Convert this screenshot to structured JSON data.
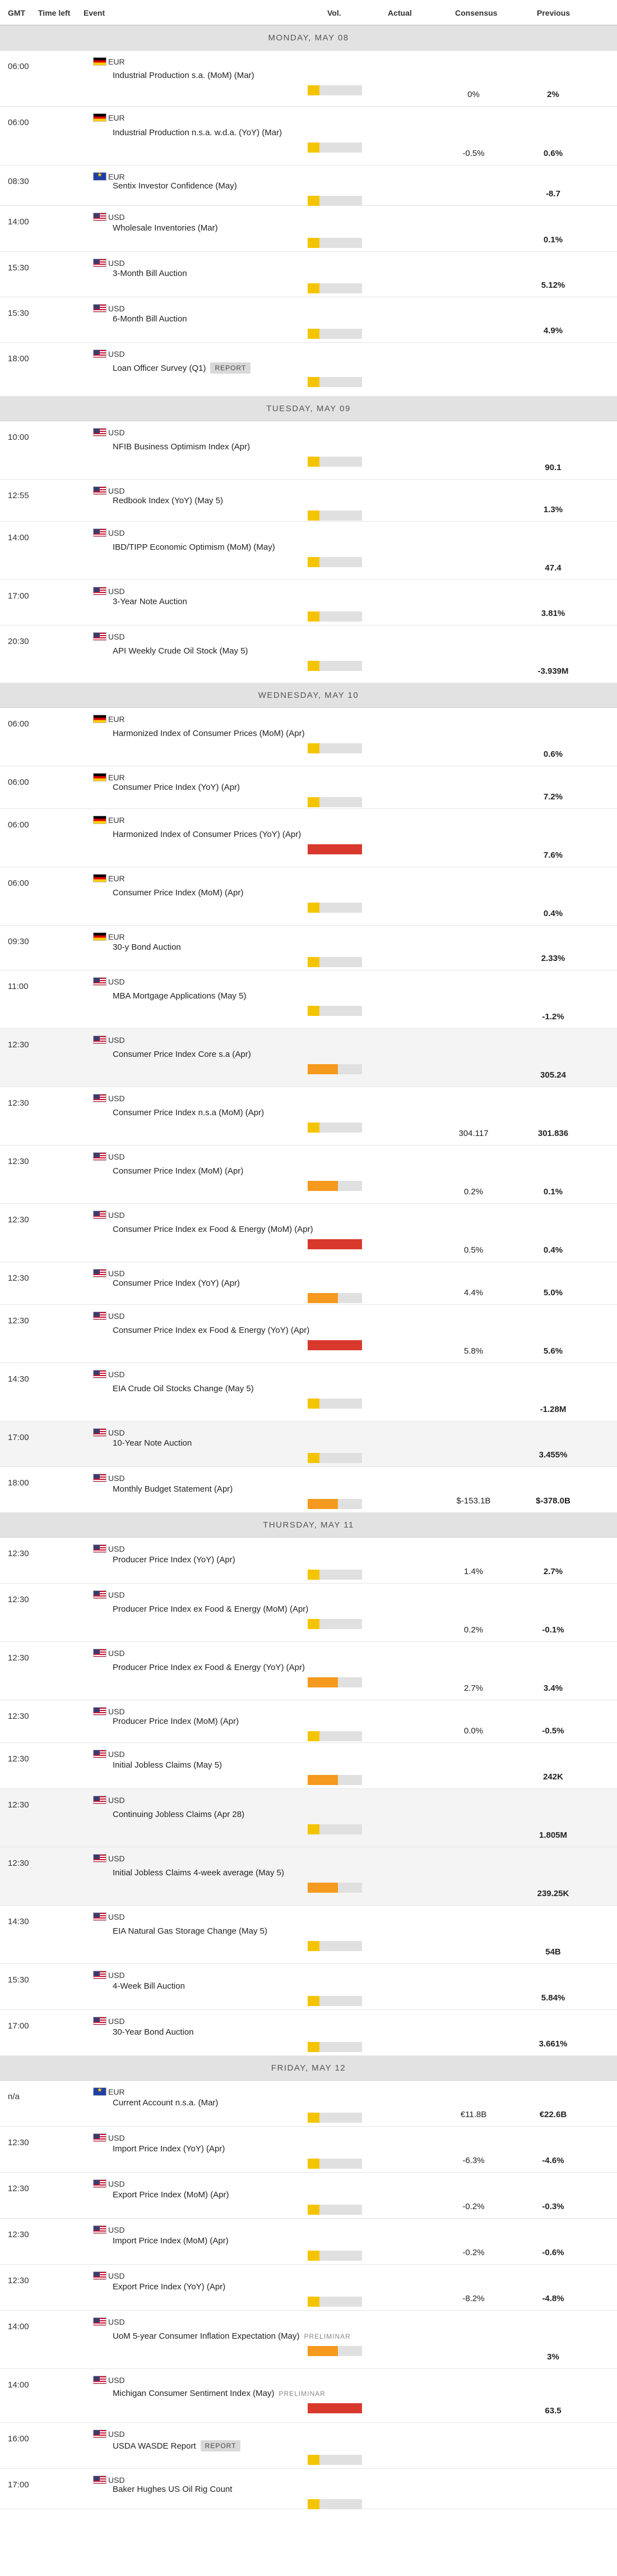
{
  "columns": {
    "gmt": "GMT",
    "time_left": "Time left",
    "event": "Event",
    "vol": "Vol.",
    "actual": "Actual",
    "consensus": "Consensus",
    "previous": "Previous"
  },
  "colors": {
    "low": "#f5c400",
    "medium": "#f59a1f",
    "high": "#d8392c",
    "track": "#e0e0e0"
  },
  "days": [
    {
      "label": "MONDAY, MAY 08",
      "events": [
        {
          "time": "06:00",
          "flag": "DE",
          "currency": "EUR",
          "name": "Industrial Production s.a. (MoM) (Mar)",
          "vol": "low",
          "consensus": "0%",
          "previous": "2%",
          "h": 100
        },
        {
          "time": "06:00",
          "flag": "DE",
          "currency": "EUR",
          "name": "Industrial Production n.s.a. w.d.a. (YoY) (Mar)",
          "vol": "low",
          "consensus": "-0.5%",
          "previous": "0.6%",
          "h": 105
        },
        {
          "time": "08:30",
          "flag": "EUR",
          "currency": "EUR",
          "name": "Sentix Investor Confidence (May)",
          "vol": "low",
          "consensus": "",
          "previous": "-8.7",
          "h": 72
        },
        {
          "time": "14:00",
          "flag": "US",
          "currency": "USD",
          "name": "Wholesale Inventories (Mar)",
          "vol": "low",
          "consensus": "",
          "previous": "0.1%",
          "h": 82
        },
        {
          "time": "15:30",
          "flag": "US",
          "currency": "USD",
          "name": "3-Month Bill Auction",
          "vol": "low",
          "consensus": "",
          "previous": "5.12%",
          "h": 81
        },
        {
          "time": "15:30",
          "flag": "US",
          "currency": "USD",
          "name": "6-Month Bill Auction",
          "vol": "low",
          "consensus": "",
          "previous": "4.9%",
          "h": 81
        },
        {
          "time": "18:00",
          "flag": "US",
          "currency": "USD",
          "name": "Loan Officer Survey (Q1)",
          "tag": "REPORT",
          "vol": "low",
          "consensus": "",
          "previous": "",
          "h": 96
        }
      ]
    },
    {
      "label": "TUESDAY, MAY 09",
      "events": [
        {
          "time": "10:00",
          "flag": "US",
          "currency": "USD",
          "name": "NFIB Business Optimism Index (Apr)",
          "vol": "low",
          "consensus": "",
          "previous": "90.1",
          "h": 104
        },
        {
          "time": "12:55",
          "flag": "US",
          "currency": "USD",
          "name": "Redbook Index (YoY) (May 5)",
          "vol": "low",
          "consensus": "",
          "previous": "1.3%",
          "h": 75
        },
        {
          "time": "14:00",
          "flag": "US",
          "currency": "USD",
          "name": "IBD/TIPP Economic Optimism (MoM) (May)",
          "vol": "low",
          "consensus": "",
          "previous": "47.4",
          "h": 104
        },
        {
          "time": "17:00",
          "flag": "US",
          "currency": "USD",
          "name": "3-Year Note Auction",
          "vol": "low",
          "consensus": "",
          "previous": "3.81%",
          "h": 81
        },
        {
          "time": "20:30",
          "flag": "US",
          "currency": "USD",
          "name": "API Weekly Crude Oil Stock (May 5)",
          "vol": "low",
          "consensus": "",
          "previous": "-3.939M",
          "h": 103
        }
      ]
    },
    {
      "label": "WEDNESDAY, MAY 10",
      "events": [
        {
          "time": "06:00",
          "flag": "DE",
          "currency": "EUR",
          "name": "Harmonized Index of Consumer Prices (MoM) (Apr)",
          "vol": "low",
          "consensus": "",
          "previous": "0.6%",
          "h": 104
        },
        {
          "time": "06:00",
          "flag": "DE",
          "currency": "EUR",
          "name": "Consumer Price Index (YoY) (Apr)",
          "vol": "low",
          "consensus": "",
          "previous": "7.2%",
          "h": 76
        },
        {
          "time": "06:00",
          "flag": "DE",
          "currency": "EUR",
          "name": "Harmonized Index of Consumer Prices (YoY) (Apr)",
          "vol": "high",
          "consensus": "",
          "previous": "7.6%",
          "h": 104
        },
        {
          "time": "06:00",
          "flag": "DE",
          "currency": "EUR",
          "name": "Consumer Price Index (MoM) (Apr)",
          "vol": "low",
          "consensus": "",
          "previous": "0.4%",
          "h": 104
        },
        {
          "time": "09:30",
          "flag": "DE",
          "currency": "EUR",
          "name": "30-y Bond Auction",
          "vol": "low",
          "consensus": "",
          "previous": "2.33%",
          "h": 80
        },
        {
          "time": "11:00",
          "flag": "US",
          "currency": "USD",
          "name": "MBA Mortgage Applications (May 5)",
          "vol": "low",
          "consensus": "",
          "previous": "-1.2%",
          "h": 104
        },
        {
          "time": "12:30",
          "flag": "US",
          "currency": "USD",
          "name": "Consumer Price Index Core s.a (Apr)",
          "vol": "medium",
          "consensus": "",
          "previous": "305.24",
          "h": 104,
          "alt": true
        },
        {
          "time": "12:30",
          "flag": "US",
          "currency": "USD",
          "name": "Consumer Price Index n.s.a (MoM) (Apr)",
          "vol": "low",
          "consensus": "304.117",
          "previous": "301.836",
          "h": 104
        },
        {
          "time": "12:30",
          "flag": "US",
          "currency": "USD",
          "name": "Consumer Price Index (MoM) (Apr)",
          "vol": "medium",
          "consensus": "0.2%",
          "previous": "0.1%",
          "h": 104
        },
        {
          "time": "12:30",
          "flag": "US",
          "currency": "USD",
          "name": "Consumer Price Index ex Food & Energy (MoM) (Apr)",
          "vol": "high",
          "consensus": "0.5%",
          "previous": "0.4%",
          "h": 104
        },
        {
          "time": "12:30",
          "flag": "US",
          "currency": "USD",
          "name": "Consumer Price Index (YoY) (Apr)",
          "vol": "medium",
          "consensus": "4.4%",
          "previous": "5.0%",
          "h": 76
        },
        {
          "time": "12:30",
          "flag": "US",
          "currency": "USD",
          "name": "Consumer Price Index ex Food & Energy (YoY) (Apr)",
          "vol": "high",
          "consensus": "5.8%",
          "previous": "5.6%",
          "h": 104
        },
        {
          "time": "14:30",
          "flag": "US",
          "currency": "USD",
          "name": "EIA Crude Oil Stocks Change (May 5)",
          "vol": "low",
          "consensus": "",
          "previous": "-1.28M",
          "h": 104
        },
        {
          "time": "17:00",
          "flag": "US",
          "currency": "USD",
          "name": "10-Year Note Auction",
          "vol": "low",
          "consensus": "",
          "previous": "3.455%",
          "h": 81,
          "alt": true
        },
        {
          "time": "18:00",
          "flag": "US",
          "currency": "USD",
          "name": "Monthly Budget Statement (Apr)",
          "vol": "medium",
          "consensus": "$-153.1B",
          "previous": "$-378.0B",
          "h": 82
        }
      ]
    },
    {
      "label": "THURSDAY, MAY 11",
      "events": [
        {
          "time": "12:30",
          "flag": "US",
          "currency": "USD",
          "name": "Producer Price Index (YoY) (Apr)",
          "vol": "low",
          "consensus": "1.4%",
          "previous": "2.7%",
          "h": 82
        },
        {
          "time": "12:30",
          "flag": "US",
          "currency": "USD",
          "name": "Producer Price Index ex Food & Energy (MoM) (Apr)",
          "vol": "low",
          "consensus": "0.2%",
          "previous": "-0.1%",
          "h": 104
        },
        {
          "time": "12:30",
          "flag": "US",
          "currency": "USD",
          "name": "Producer Price Index ex Food & Energy (YoY) (Apr)",
          "vol": "medium",
          "consensus": "2.7%",
          "previous": "3.4%",
          "h": 104
        },
        {
          "time": "12:30",
          "flag": "US",
          "currency": "USD",
          "name": "Producer Price Index (MoM) (Apr)",
          "vol": "low",
          "consensus": "0.0%",
          "previous": "-0.5%",
          "h": 76
        },
        {
          "time": "12:30",
          "flag": "US",
          "currency": "USD",
          "name": "Initial Jobless Claims (May 5)",
          "vol": "medium",
          "consensus": "",
          "previous": "242K",
          "h": 82
        },
        {
          "time": "12:30",
          "flag": "US",
          "currency": "USD",
          "name": "Continuing Jobless Claims (Apr 28)",
          "vol": "low",
          "consensus": "",
          "previous": "1.805M",
          "h": 104,
          "alt": true
        },
        {
          "time": "12:30",
          "flag": "US",
          "currency": "USD",
          "name": "Initial Jobless Claims 4-week average (May 5)",
          "vol": "medium",
          "consensus": "",
          "previous": "239.25K",
          "h": 104,
          "alt": true
        },
        {
          "time": "14:30",
          "flag": "US",
          "currency": "USD",
          "name": "EIA Natural Gas Storage Change (May 5)",
          "vol": "low",
          "consensus": "",
          "previous": "54B",
          "h": 104
        },
        {
          "time": "15:30",
          "flag": "US",
          "currency": "USD",
          "name": "4-Week Bill Auction",
          "vol": "low",
          "consensus": "",
          "previous": "5.84%",
          "h": 82
        },
        {
          "time": "17:00",
          "flag": "US",
          "currency": "USD",
          "name": "30-Year Bond Auction",
          "vol": "low",
          "consensus": "",
          "previous": "3.661%",
          "h": 82
        }
      ]
    },
    {
      "label": "FRIDAY, MAY 12",
      "events": [
        {
          "time": "n/a",
          "flag": "EUR",
          "currency": "EUR",
          "name": "Current Account n.s.a. (Mar)",
          "vol": "low",
          "consensus": "€11.8B",
          "previous": "€22.6B",
          "h": 82
        },
        {
          "time": "12:30",
          "flag": "US",
          "currency": "USD",
          "name": "Import Price Index (YoY) (Apr)",
          "vol": "low",
          "consensus": "-6.3%",
          "previous": "-4.6%",
          "h": 82
        },
        {
          "time": "12:30",
          "flag": "US",
          "currency": "USD",
          "name": "Export Price Index (MoM) (Apr)",
          "vol": "low",
          "consensus": "-0.2%",
          "previous": "-0.3%",
          "h": 82
        },
        {
          "time": "12:30",
          "flag": "US",
          "currency": "USD",
          "name": "Import Price Index (MoM) (Apr)",
          "vol": "low",
          "consensus": "-0.2%",
          "previous": "-0.6%",
          "h": 82
        },
        {
          "time": "12:30",
          "flag": "US",
          "currency": "USD",
          "name": "Export Price Index (YoY) (Apr)",
          "vol": "low",
          "consensus": "-8.2%",
          "previous": "-4.8%",
          "h": 82
        },
        {
          "time": "14:00",
          "flag": "US",
          "currency": "USD",
          "name": "UoM 5-year Consumer Inflation Expectation (May)",
          "tag": "PRELIMINAR",
          "tag_style": "prel",
          "vol": "medium",
          "consensus": "",
          "previous": "3%",
          "h": 104
        },
        {
          "time": "14:00",
          "flag": "US",
          "currency": "USD",
          "name": "Michigan Consumer Sentiment Index (May)",
          "tag": "PRELIMINAR",
          "tag_style": "prel",
          "vol": "high",
          "consensus": "",
          "previous": "63.5",
          "h": 96
        },
        {
          "time": "16:00",
          "flag": "US",
          "currency": "USD",
          "name": "USDA WASDE Report",
          "tag": "REPORT",
          "vol": "low",
          "consensus": "",
          "previous": "",
          "h": 82
        },
        {
          "time": "17:00",
          "flag": "US",
          "currency": "USD",
          "name": "Baker Hughes US Oil Rig Count",
          "vol": "low",
          "consensus": "",
          "previous": "",
          "h": 72
        }
      ]
    }
  ]
}
